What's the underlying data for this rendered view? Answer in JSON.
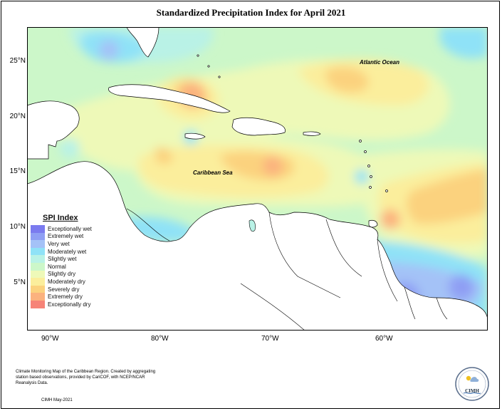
{
  "title": "Standardized Precipitation Index for April 2021",
  "labels": {
    "atlantic": "Atlantic Ocean",
    "caribbean": "Caribbean Sea"
  },
  "lat_ticks": [
    "25°N",
    "20°N",
    "15°N",
    "10°N",
    "5°N"
  ],
  "lon_ticks": [
    "90°W",
    "80°W",
    "70°W",
    "60°W"
  ],
  "legend": {
    "title": "SPI Index",
    "items": [
      {
        "label": "Exceptionally wet",
        "color": "#7b7bef"
      },
      {
        "label": "Extremely wet",
        "color": "#8f9ff4"
      },
      {
        "label": "Very wet",
        "color": "#a4c2f7"
      },
      {
        "label": "Moderately wet",
        "color": "#8fe2f7"
      },
      {
        "label": "Slightly wet",
        "color": "#b9f2e6"
      },
      {
        "label": "Normal",
        "color": "#ccf7c9"
      },
      {
        "label": "Slightly dry",
        "color": "#eef9b8"
      },
      {
        "label": "Moderately dry",
        "color": "#fbee9c"
      },
      {
        "label": "Severely dry",
        "color": "#fbd27e"
      },
      {
        "label": "Extremely dry",
        "color": "#fbb27e"
      },
      {
        "label": "Exceptionally dry",
        "color": "#f68478"
      }
    ]
  },
  "note": "Climate Monitoring Map of the Caribbean Region. Created by aggregating station based observations, provided by CariCOF, with NCEP/NCAR Reanalysis Data.",
  "credit": "CIMH May-2021",
  "logo_text": "CIMH"
}
